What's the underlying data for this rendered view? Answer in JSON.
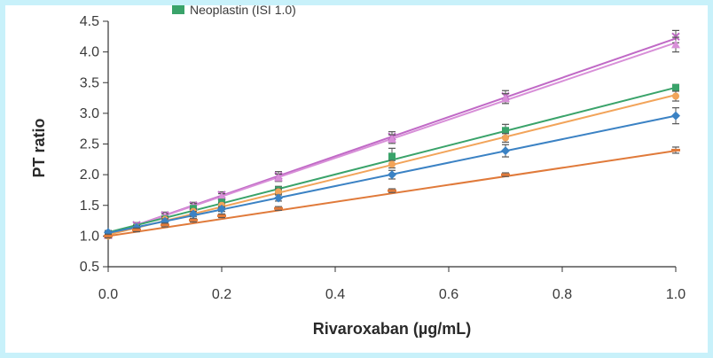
{
  "chart_data": {
    "type": "scatter",
    "title": "",
    "xlabel": "Rivaroxaban (µg/mL)",
    "ylabel": "PT ratio",
    "xlim": [
      0.0,
      1.0
    ],
    "ylim": [
      0.5,
      4.5
    ],
    "xticks": [
      0.0,
      0.2,
      0.4,
      0.6,
      0.8,
      1.0
    ],
    "xtick_labels": [
      "0.0",
      "0.2",
      "0.4",
      "0.6",
      "0.8",
      "1.0"
    ],
    "yticks": [
      0.5,
      1.0,
      1.5,
      2.0,
      2.5,
      3.0,
      3.5,
      4.0,
      4.5
    ],
    "ytick_labels": [
      "0.5",
      "1.0",
      "1.5",
      "2.0",
      "2.5",
      "3.0",
      "3.5",
      "4.0",
      "4.5"
    ],
    "grid": false,
    "legend": {
      "position": "top (partially cropped)",
      "visible_entry": "Neoplastin (ISI 1.0)"
    },
    "x": [
      0.0,
      0.05,
      0.1,
      0.15,
      0.2,
      0.3,
      0.5,
      0.7,
      1.0
    ],
    "series": [
      {
        "name": "",
        "color": "#c069c6",
        "marker": "x",
        "values": [
          1.02,
          1.18,
          1.34,
          1.5,
          1.67,
          1.98,
          2.62,
          3.28,
          4.25
        ],
        "err": [
          0.04,
          0.04,
          0.05,
          0.05,
          0.05,
          0.07,
          0.08,
          0.09,
          0.1
        ],
        "fit": [
          1.02,
          4.22
        ]
      },
      {
        "name": "",
        "color": "#d88fd8",
        "marker": "triangle",
        "values": [
          1.01,
          1.16,
          1.32,
          1.48,
          1.64,
          1.95,
          2.58,
          3.24,
          4.12
        ],
        "err": [
          0.03,
          0.03,
          0.04,
          0.05,
          0.05,
          0.06,
          0.07,
          0.08,
          0.12
        ],
        "fit": [
          1.02,
          4.15
        ]
      },
      {
        "name": "Neoplastin (ISI 1.0)",
        "color": "#3aa36a",
        "marker": "square",
        "values": [
          1.04,
          1.14,
          1.28,
          1.45,
          1.55,
          1.75,
          2.3,
          2.72,
          3.42
        ],
        "err": [
          0.03,
          0.04,
          0.04,
          0.04,
          0.05,
          0.06,
          0.13,
          0.1,
          0.05
        ],
        "fit": [
          1.06,
          3.42
        ]
      },
      {
        "name": "",
        "color": "#f2a45a",
        "marker": "circle",
        "values": [
          1.0,
          1.14,
          1.27,
          1.4,
          1.5,
          1.72,
          2.17,
          2.6,
          3.28
        ],
        "err": [
          0.03,
          0.03,
          0.04,
          0.04,
          0.04,
          0.05,
          0.06,
          0.07,
          0.08
        ],
        "fit": [
          1.02,
          3.3
        ]
      },
      {
        "name": "",
        "color": "#3b82c4",
        "marker": "diamond",
        "values": [
          1.06,
          1.14,
          1.24,
          1.36,
          1.44,
          1.62,
          2.0,
          2.39,
          2.96
        ],
        "err": [
          0.03,
          0.03,
          0.04,
          0.04,
          0.04,
          0.05,
          0.07,
          0.1,
          0.13
        ],
        "fit": [
          1.05,
          2.96
        ]
      },
      {
        "name": "",
        "color": "#e07a3a",
        "marker": "dash",
        "values": [
          1.0,
          1.1,
          1.18,
          1.26,
          1.33,
          1.45,
          1.74,
          2.0,
          2.4
        ],
        "err": [
          0.03,
          0.03,
          0.03,
          0.03,
          0.03,
          0.03,
          0.03,
          0.03,
          0.05
        ],
        "fit": [
          1.0,
          2.39
        ]
      }
    ]
  }
}
